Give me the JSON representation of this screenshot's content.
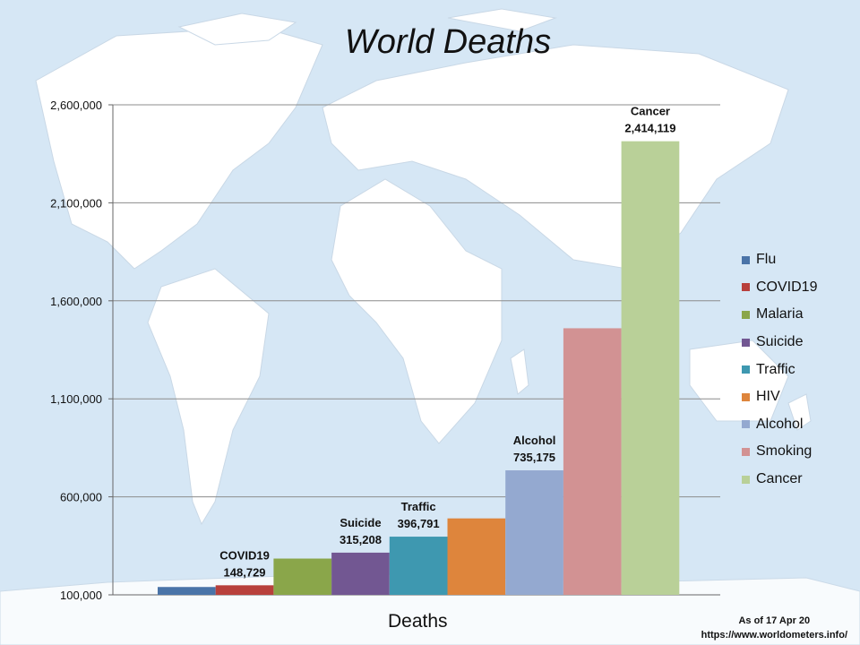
{
  "chart_data": {
    "type": "bar",
    "title": "World Deaths",
    "xlabel": "Deaths",
    "ylabel": "",
    "ylim": [
      100000,
      2600000
    ],
    "yticks": [
      100000,
      600000,
      1100000,
      1600000,
      2100000,
      2600000
    ],
    "ytick_labels": [
      "100,000",
      "600,000",
      "1,100,000",
      "1,600,000",
      "2,100,000",
      "2,600,000"
    ],
    "grid": true,
    "legend_position": "right",
    "series": [
      {
        "name": "Flu",
        "value": 140000,
        "color": "#4a74a8",
        "label": ""
      },
      {
        "name": "COVID19",
        "value": 148729,
        "color": "#b8403c",
        "label": "COVID19\n148,729"
      },
      {
        "name": "Malaria",
        "value": 285000,
        "color": "#8aa64a",
        "label": ""
      },
      {
        "name": "Suicide",
        "value": 315208,
        "color": "#725792",
        "label": "Suicide\n315,208"
      },
      {
        "name": "Traffic",
        "value": 396791,
        "color": "#3e98b0",
        "label": "Traffic\n396,791"
      },
      {
        "name": "HIV",
        "value": 490000,
        "color": "#de853c",
        "label": ""
      },
      {
        "name": "Alcohol",
        "value": 735175,
        "color": "#94a9d0",
        "label": "Alcohol\n735,175"
      },
      {
        "name": "Smoking",
        "value": 1460000,
        "color": "#d29293",
        "label": ""
      },
      {
        "name": "Cancer",
        "value": 2414119,
        "color": "#b9d098",
        "label": "Cancer\n2,414,119"
      }
    ]
  },
  "source": {
    "line1": "As of 17 Apr 20",
    "line2": "https://www.worldometers.info/"
  }
}
